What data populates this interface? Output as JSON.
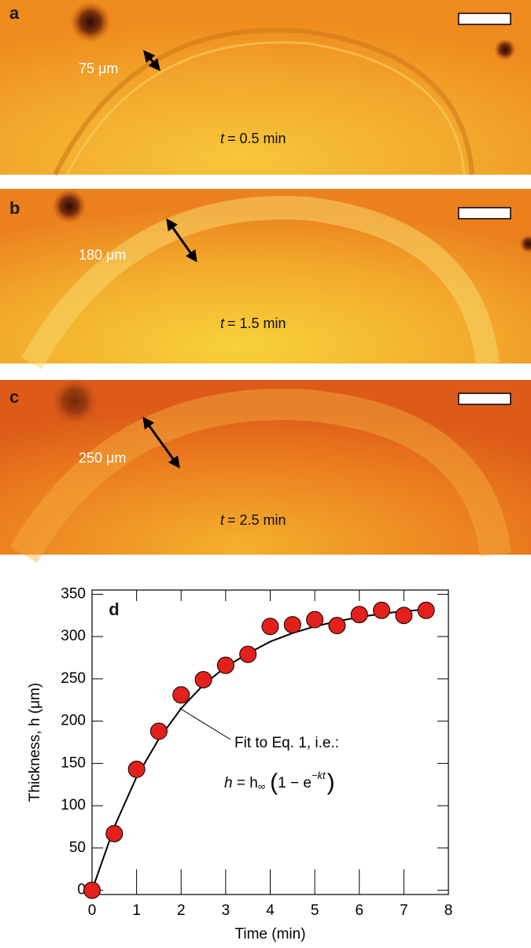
{
  "panels": [
    {
      "label": "a",
      "thickness_label": "75 μm",
      "time_var": "t",
      "time_text": "= 0.5 min"
    },
    {
      "label": "b",
      "thickness_label": "180 μm",
      "time_var": "t",
      "time_text": "= 1.5 min"
    },
    {
      "label": "c",
      "thickness_label": "250 μm",
      "time_var": "t",
      "time_text": "= 2.5 min"
    }
  ],
  "chart_data": {
    "type": "scatter",
    "panel_label": "d",
    "x_label": "Time (min)",
    "y_label": "Thickness, h (μm)",
    "x": [
      0,
      0.5,
      1,
      1.5,
      2,
      2.5,
      3,
      3.5,
      4,
      4.5,
      5,
      5.5,
      6,
      6.5,
      7,
      7.5
    ],
    "series": [
      {
        "color": "#e3201b",
        "values": [
          0,
          67,
          143,
          188,
          231,
          249,
          266,
          279,
          312,
          314,
          320,
          313,
          326,
          331,
          325,
          331
        ]
      },
      {
        "color": "#000000",
        "style": "line",
        "values": [
          0,
          75,
          134,
          179,
          215,
          243,
          264,
          280,
          294,
          304,
          312,
          318,
          323,
          327,
          330,
          332
        ]
      }
    ],
    "annotation": "Fit to Eq. 1, i.e.:",
    "equation": {
      "lhs": "h",
      "rhs": " = h",
      "sub": "∞",
      "open": "(",
      "base": "1 − e",
      "sup": "−kt",
      "close": ")"
    },
    "xlim": [
      0,
      8
    ],
    "ylim": [
      -5,
      355
    ],
    "xticks": [
      0,
      1,
      2,
      3,
      4,
      5,
      6,
      7,
      8
    ],
    "yticks": [
      0,
      50,
      100,
      150,
      200,
      250,
      300,
      350
    ]
  }
}
